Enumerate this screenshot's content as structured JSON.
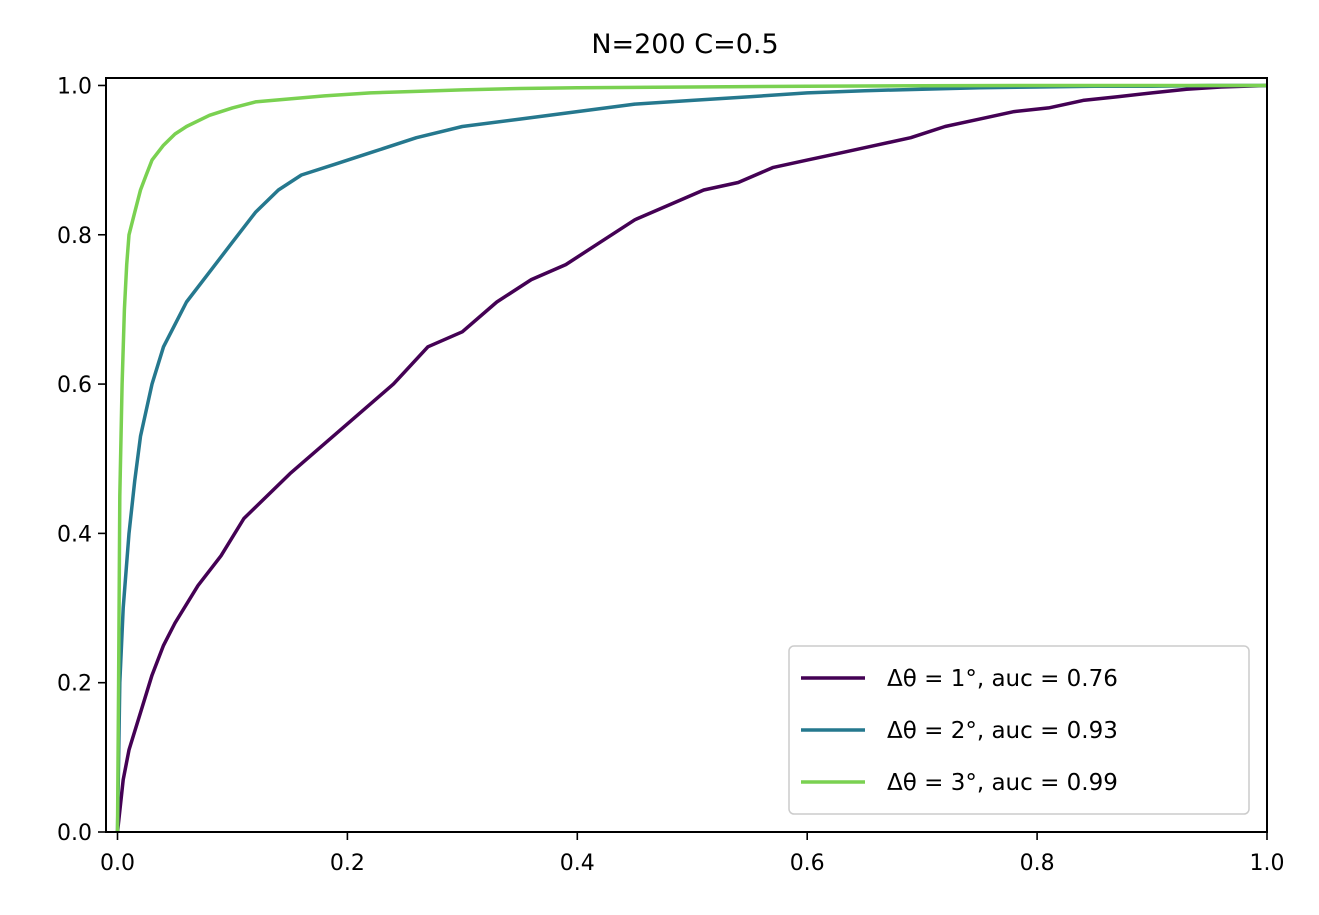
{
  "chart_data": {
    "type": "line",
    "title": "N=200 C=0.5",
    "xlabel": "",
    "ylabel": "",
    "xlim": [
      -0.01,
      1.0
    ],
    "ylim": [
      0.0,
      1.01
    ],
    "xticks": [
      0.0,
      0.2,
      0.4,
      0.6,
      0.8,
      1.0
    ],
    "xtick_labels": [
      "0.0",
      "0.2",
      "0.4",
      "0.6",
      "0.8",
      "1.0"
    ],
    "yticks": [
      0.0,
      0.2,
      0.4,
      0.6,
      0.8,
      1.0
    ],
    "ytick_labels": [
      "0.0",
      "0.2",
      "0.4",
      "0.6",
      "0.8",
      "1.0"
    ],
    "grid": false,
    "legend_position": "lower-right",
    "series": [
      {
        "name": "Δθ = 1°, auc = 0.76",
        "color": "#440154",
        "x": [
          0.0,
          0.005,
          0.01,
          0.02,
          0.03,
          0.04,
          0.05,
          0.07,
          0.09,
          0.11,
          0.13,
          0.15,
          0.18,
          0.21,
          0.24,
          0.27,
          0.3,
          0.33,
          0.36,
          0.39,
          0.42,
          0.45,
          0.48,
          0.51,
          0.54,
          0.57,
          0.6,
          0.63,
          0.66,
          0.69,
          0.72,
          0.75,
          0.78,
          0.81,
          0.84,
          0.87,
          0.9,
          0.93,
          0.96,
          1.0
        ],
        "y": [
          0.0,
          0.07,
          0.11,
          0.16,
          0.21,
          0.25,
          0.28,
          0.33,
          0.37,
          0.42,
          0.45,
          0.48,
          0.52,
          0.56,
          0.6,
          0.65,
          0.67,
          0.71,
          0.74,
          0.76,
          0.79,
          0.82,
          0.84,
          0.86,
          0.87,
          0.89,
          0.9,
          0.91,
          0.92,
          0.93,
          0.945,
          0.955,
          0.965,
          0.97,
          0.98,
          0.985,
          0.99,
          0.995,
          0.998,
          1.0
        ]
      },
      {
        "name": "Δθ = 2°, auc = 0.93",
        "color": "#25788e",
        "x": [
          0.0,
          0.002,
          0.005,
          0.01,
          0.015,
          0.02,
          0.03,
          0.04,
          0.05,
          0.06,
          0.08,
          0.1,
          0.12,
          0.14,
          0.16,
          0.19,
          0.22,
          0.26,
          0.3,
          0.35,
          0.4,
          0.45,
          0.5,
          0.55,
          0.6,
          0.65,
          0.7,
          0.75,
          0.8,
          0.85,
          0.9,
          0.95,
          1.0
        ],
        "y": [
          0.0,
          0.2,
          0.3,
          0.4,
          0.47,
          0.53,
          0.6,
          0.65,
          0.68,
          0.71,
          0.75,
          0.79,
          0.83,
          0.86,
          0.88,
          0.895,
          0.91,
          0.93,
          0.945,
          0.955,
          0.965,
          0.975,
          0.98,
          0.985,
          0.99,
          0.993,
          0.995,
          0.997,
          0.998,
          0.999,
          0.999,
          1.0,
          1.0
        ]
      },
      {
        "name": "Δθ = 3°, auc = 0.99",
        "color": "#7ad151",
        "x": [
          0.0,
          0.001,
          0.002,
          0.004,
          0.006,
          0.008,
          0.01,
          0.015,
          0.02,
          0.025,
          0.03,
          0.04,
          0.05,
          0.06,
          0.08,
          0.1,
          0.12,
          0.15,
          0.18,
          0.22,
          0.26,
          0.3,
          0.35,
          0.4,
          0.5,
          0.6,
          0.7,
          0.8,
          0.9,
          1.0
        ],
        "y": [
          0.0,
          0.2,
          0.45,
          0.6,
          0.7,
          0.76,
          0.8,
          0.83,
          0.86,
          0.88,
          0.9,
          0.92,
          0.935,
          0.945,
          0.96,
          0.97,
          0.978,
          0.982,
          0.986,
          0.99,
          0.992,
          0.994,
          0.996,
          0.997,
          0.998,
          0.999,
          0.9995,
          1.0,
          1.0,
          1.0
        ]
      }
    ]
  }
}
